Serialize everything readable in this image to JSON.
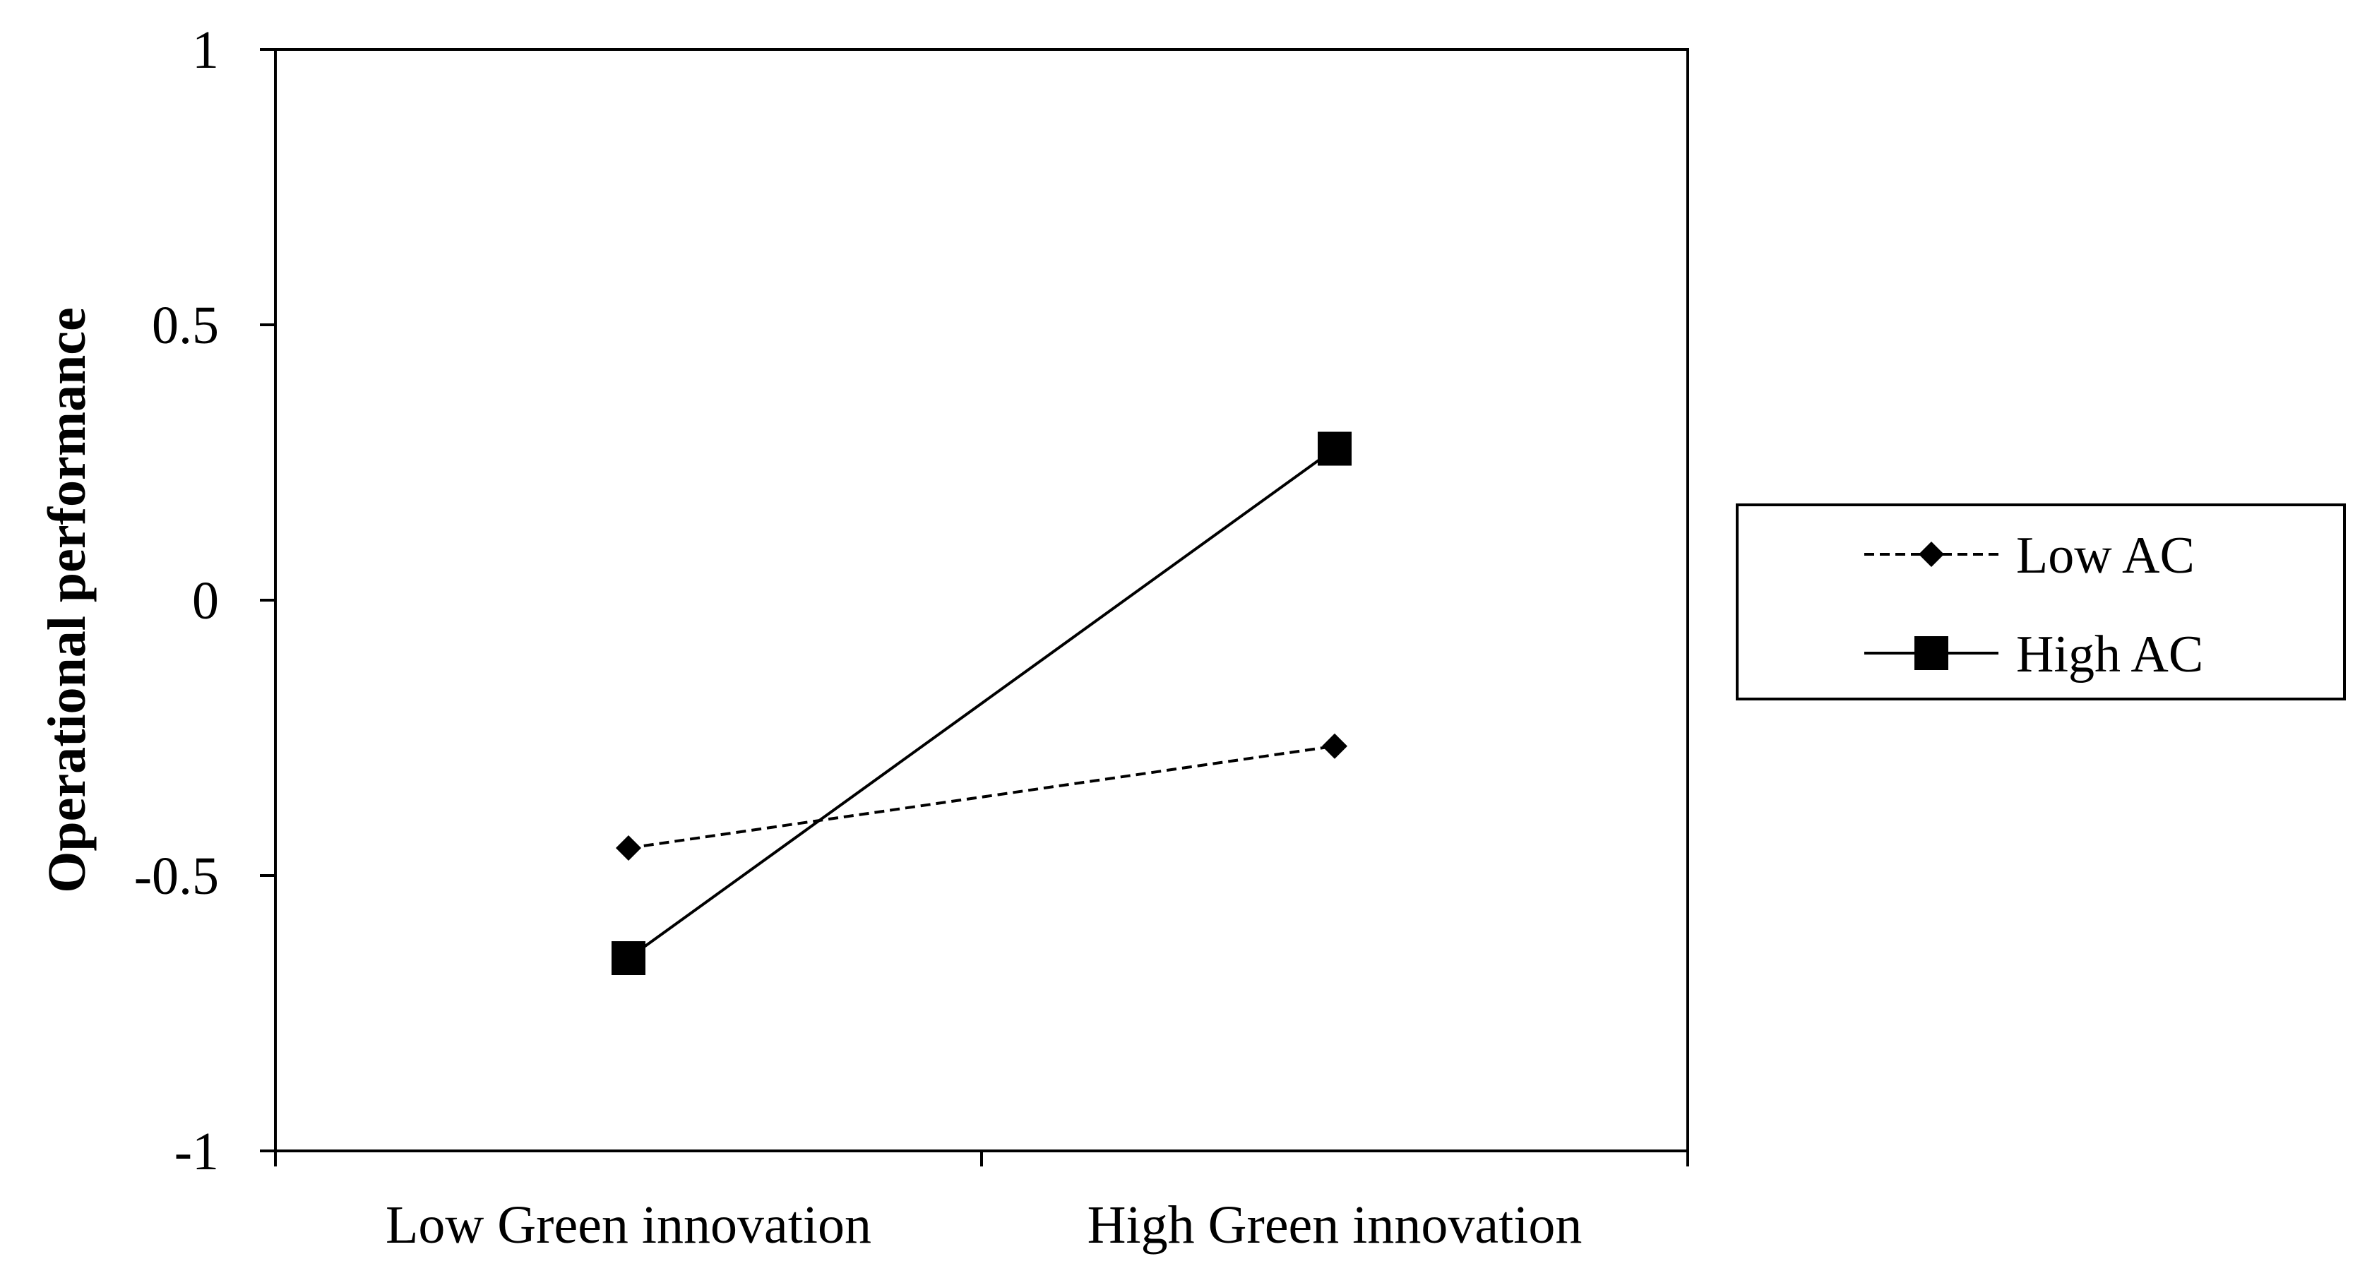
{
  "chart_data": {
    "type": "line",
    "title": "",
    "xlabel": "",
    "ylabel": "Operational performance",
    "categories": [
      "Low Green innovation",
      "High Green innovation"
    ],
    "ylim": [
      -1,
      1
    ],
    "yticks": [
      1,
      0.5,
      0,
      -0.5,
      -1
    ],
    "ytick_labels": [
      "1",
      "0.5",
      "0",
      "-0.5",
      "-1"
    ],
    "grid": false,
    "legend": "right",
    "series": [
      {
        "name": "Low AC",
        "values": [
          -0.45,
          -0.265
        ],
        "style": "dashed",
        "marker": "diamond",
        "color": "#000000"
      },
      {
        "name": "High AC",
        "values": [
          -0.65,
          0.275
        ],
        "style": "solid",
        "marker": "square",
        "color": "#000000"
      }
    ]
  }
}
